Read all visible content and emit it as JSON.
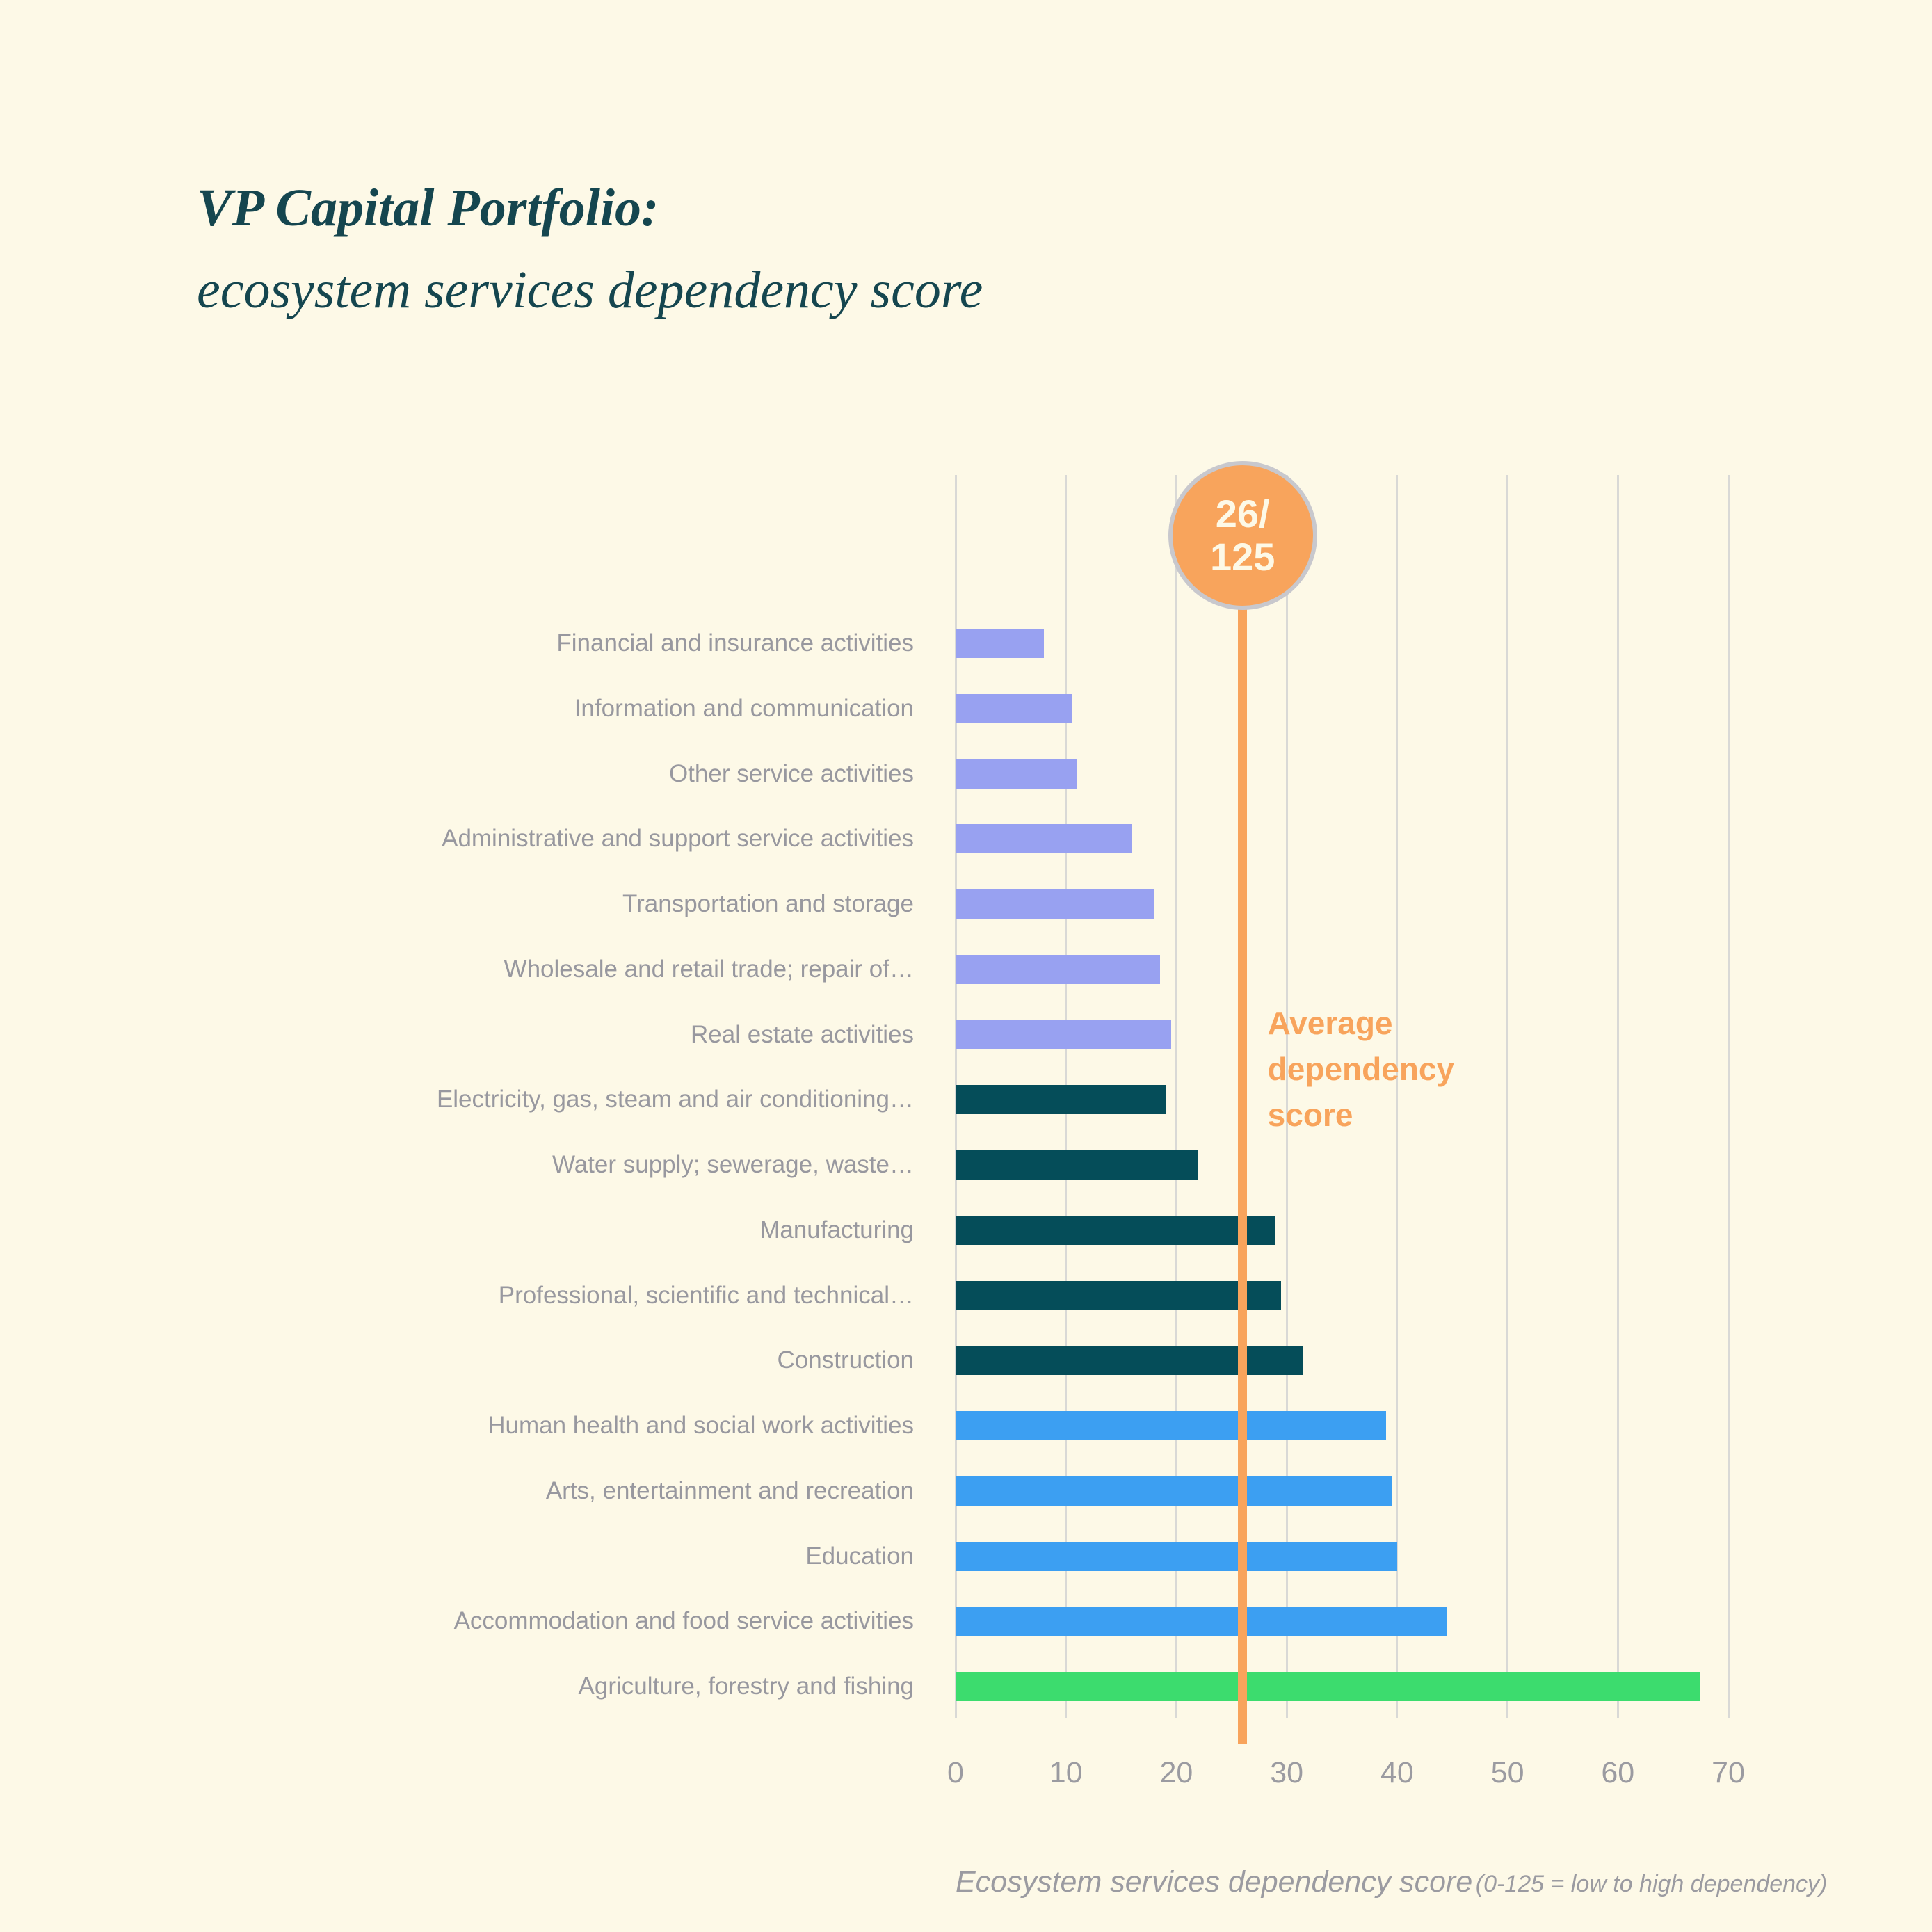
{
  "title": {
    "line1": "VP Capital Portfolio:",
    "line2": "ecosystem services dependency score"
  },
  "badge": {
    "line1": "26/",
    "line2": "125"
  },
  "average_label": "Average dependency score",
  "axis": {
    "xlabel": "Ecosystem services dependency score",
    "xlabel_note": "(0-125 = low to high dependency)"
  },
  "chart_data": {
    "type": "bar",
    "orientation": "horizontal",
    "title": "VP Capital Portfolio: ecosystem services dependency score",
    "xlabel": "Ecosystem services dependency score (0-125 = low to high dependency)",
    "xlim": [
      0,
      70
    ],
    "x_ticks": [
      0,
      10,
      20,
      30,
      40,
      50,
      60,
      70
    ],
    "grid": true,
    "categories": [
      "Financial and insurance activities",
      "Information and communication",
      "Other service activities",
      "Administrative and support service activities",
      "Transportation and storage",
      "Wholesale and retail trade; repair of…",
      "Real estate activities",
      "Electricity, gas, steam and air conditioning…",
      "Water supply; sewerage, waste…",
      "Manufacturing",
      "Professional, scientific and technical…",
      "Construction",
      "Human health and social work activities",
      "Arts, entertainment and recreation",
      "Education",
      "Accommodation and food service activities",
      "Agriculture, forestry and fishing"
    ],
    "values": [
      8,
      10.5,
      11,
      16,
      18,
      18.5,
      19.5,
      19,
      22,
      29,
      29.5,
      31.5,
      39,
      39.5,
      40,
      44.5,
      67.5
    ],
    "bar_color_groups": [
      "periwinkle",
      "periwinkle",
      "periwinkle",
      "periwinkle",
      "periwinkle",
      "periwinkle",
      "periwinkle",
      "teal",
      "teal",
      "teal",
      "teal",
      "teal",
      "blue",
      "blue",
      "blue",
      "blue",
      "green"
    ],
    "average_line": {
      "value": 26,
      "badge_text": "26/125",
      "label": "Average dependency score"
    },
    "colors": {
      "background": "#FDF9E7",
      "title_text": "#15464F",
      "periwinkle": "#98A1F1",
      "teal": "#054D59",
      "blue": "#3C9FF2",
      "green": "#3CDC6E",
      "orange": "#F8A45C",
      "badge_border": "#C8C8CD",
      "gridline": "#D9D9D6",
      "label_gray": "#98989F"
    }
  }
}
